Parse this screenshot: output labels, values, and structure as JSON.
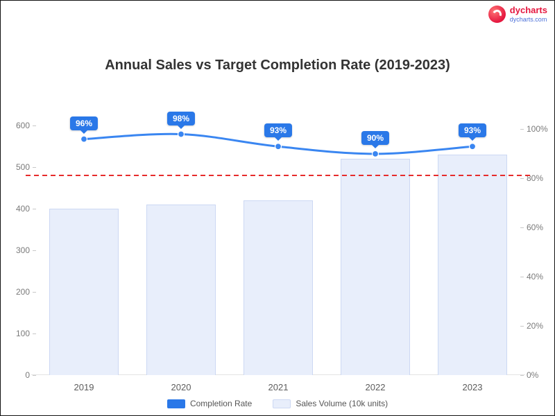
{
  "brand": {
    "name": "dycharts",
    "url": "dycharts.com"
  },
  "chart_data": {
    "type": "combo",
    "title": "Annual Sales vs Target Completion Rate (2019-2023)",
    "categories": [
      "2019",
      "2020",
      "2021",
      "2022",
      "2023"
    ],
    "series": [
      {
        "name": "Completion Rate",
        "type": "line",
        "axis": "right",
        "values": [
          96,
          98,
          93,
          90,
          93
        ],
        "labels": [
          "96%",
          "98%",
          "93%",
          "90%",
          "93%"
        ],
        "color": "#3a86f1",
        "badge_color": "#2a78e8"
      },
      {
        "name": "Sales Volume (10k units)",
        "type": "bar",
        "axis": "left",
        "values": [
          400,
          410,
          420,
          520,
          530
        ],
        "color": "#e8eefb",
        "border": "#ccd8f3"
      }
    ],
    "target_line": {
      "value": 480,
      "color": "#e62b2b",
      "style": "dashed",
      "axis": "left"
    },
    "axes": {
      "left": {
        "min": 0,
        "max": 650,
        "ticks": [
          "0",
          "100",
          "200",
          "300",
          "400",
          "500",
          "600"
        ]
      },
      "right": {
        "min": 0,
        "max": 110,
        "ticks": [
          "0%",
          "20%",
          "40%",
          "60%",
          "80%",
          "100%"
        ]
      }
    },
    "legend": [
      {
        "label": "Completion Rate",
        "color": "#2a78e8"
      },
      {
        "label": "Sales Volume (10k units)",
        "color": "#e8eefb",
        "border": "#ccd8f3"
      }
    ],
    "grid": false,
    "legend_position": "bottom"
  }
}
